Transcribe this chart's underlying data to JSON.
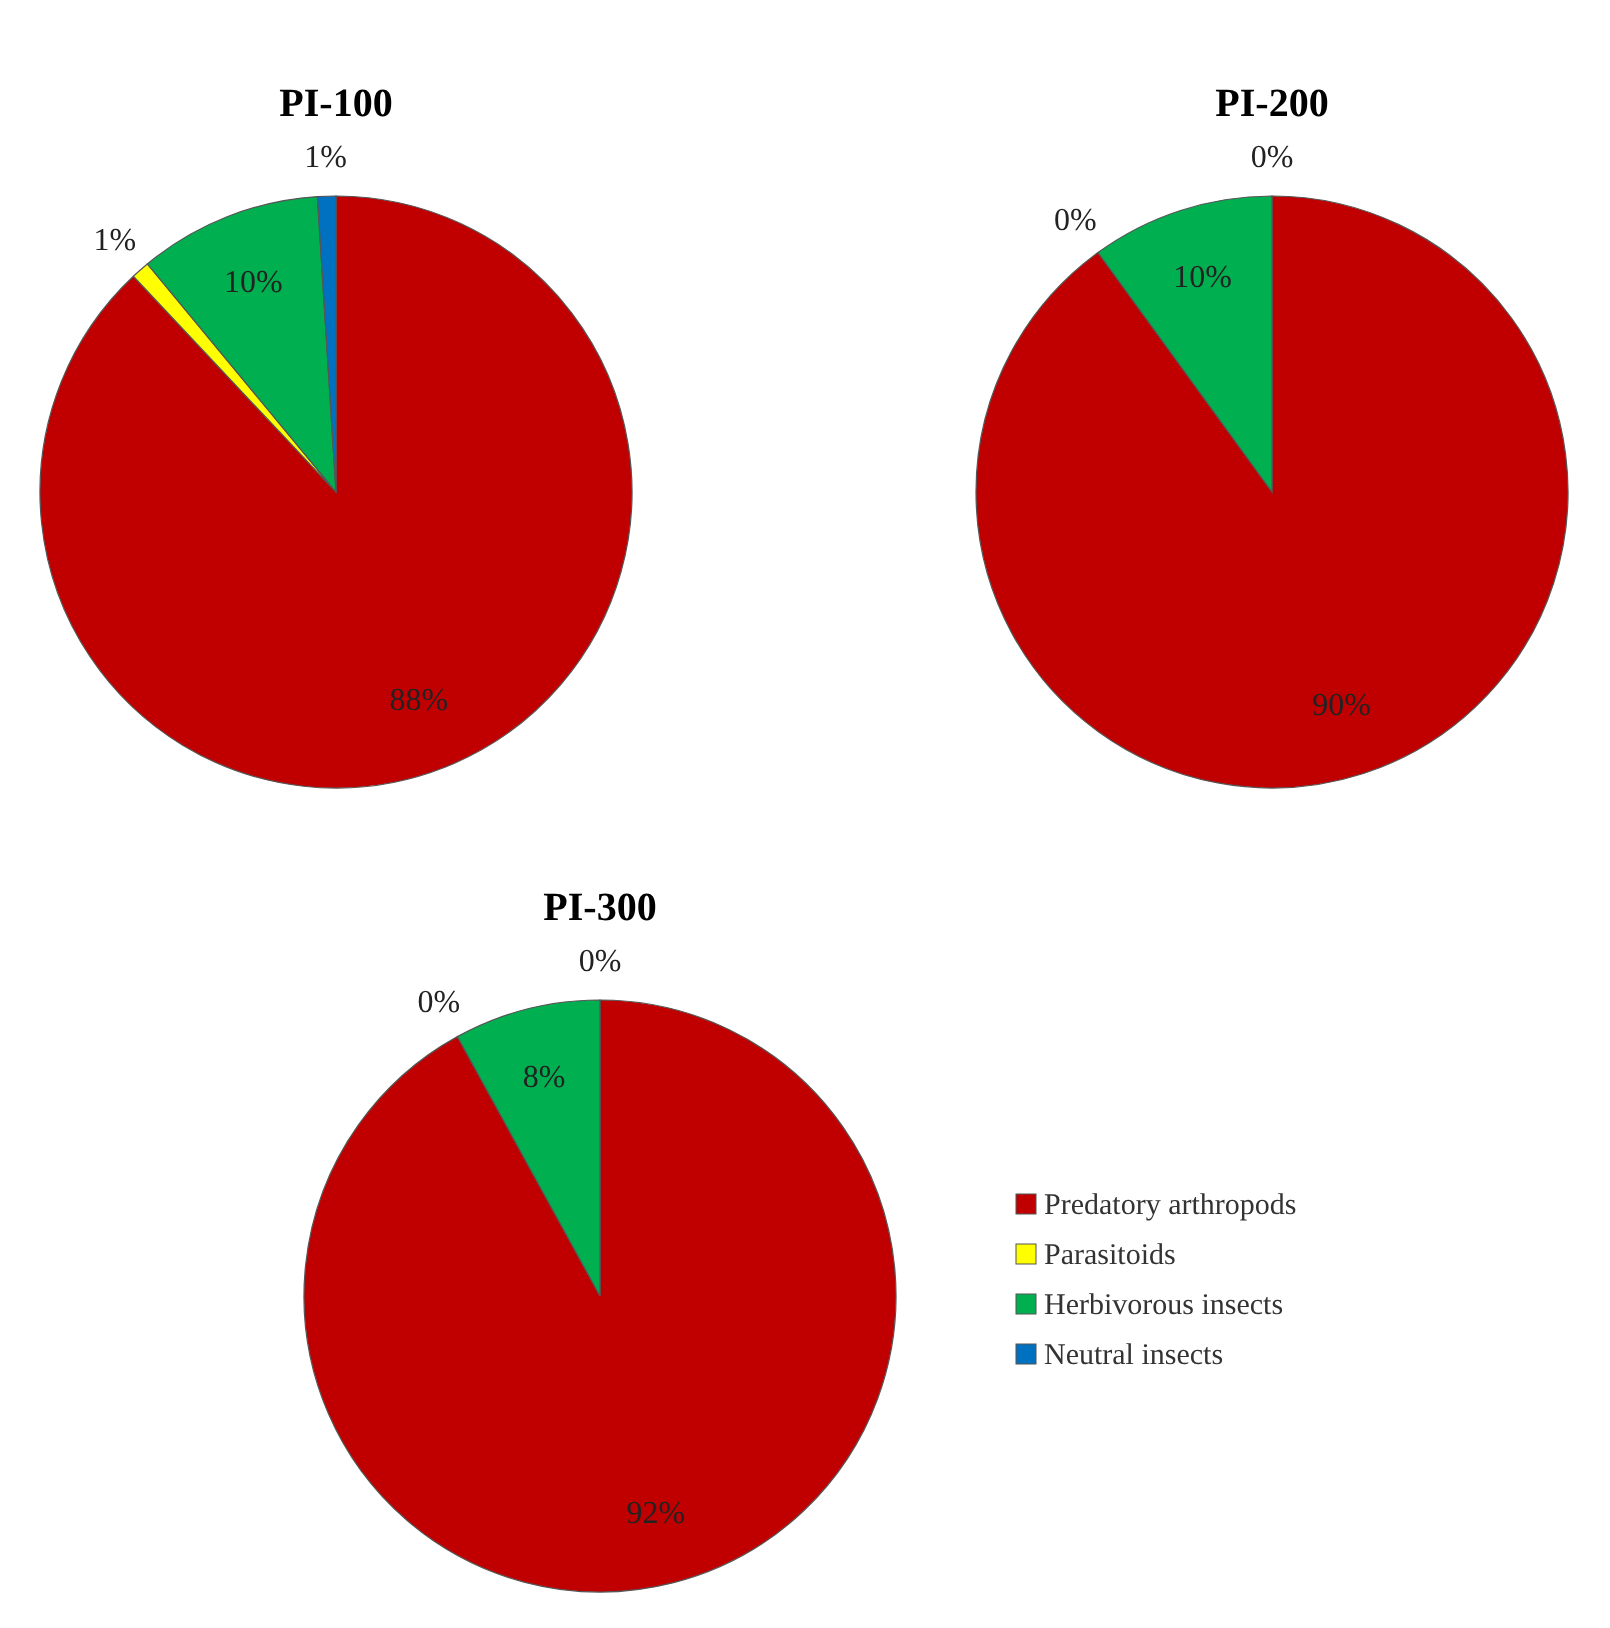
{
  "chart_data": [
    {
      "type": "pie",
      "title": "PI-100",
      "categories": [
        null,
        null,
        null,
        null
      ],
      "values": [
        88,
        1,
        10,
        1
      ],
      "colors": [
        "#c00000",
        "#ffff00",
        "#00b050",
        "#0070c0"
      ],
      "value_labels": [
        "88%",
        "1%",
        "10%",
        "1%"
      ]
    },
    {
      "type": "pie",
      "title": "PI-200",
      "categories": [
        null,
        null,
        null,
        null
      ],
      "values": [
        90,
        0,
        10,
        0
      ],
      "colors": [
        "#c00000",
        "#ffff00",
        "#00b050",
        "#0070c0"
      ],
      "value_labels": [
        "90%",
        "0%",
        "10%",
        "0%"
      ]
    },
    {
      "type": "pie",
      "title": "PI-300",
      "categories": [
        "Predatory arthropods",
        "Parasitoids",
        "Herbivorous insects",
        "Neutral insects"
      ],
      "values": [
        92,
        0,
        8,
        0
      ],
      "colors": [
        "#c00000",
        "#ffff00",
        "#00b050",
        "#0070c0"
      ],
      "value_labels": [
        "92%",
        "0%",
        "8%",
        "0%"
      ],
      "legend": "right"
    }
  ]
}
